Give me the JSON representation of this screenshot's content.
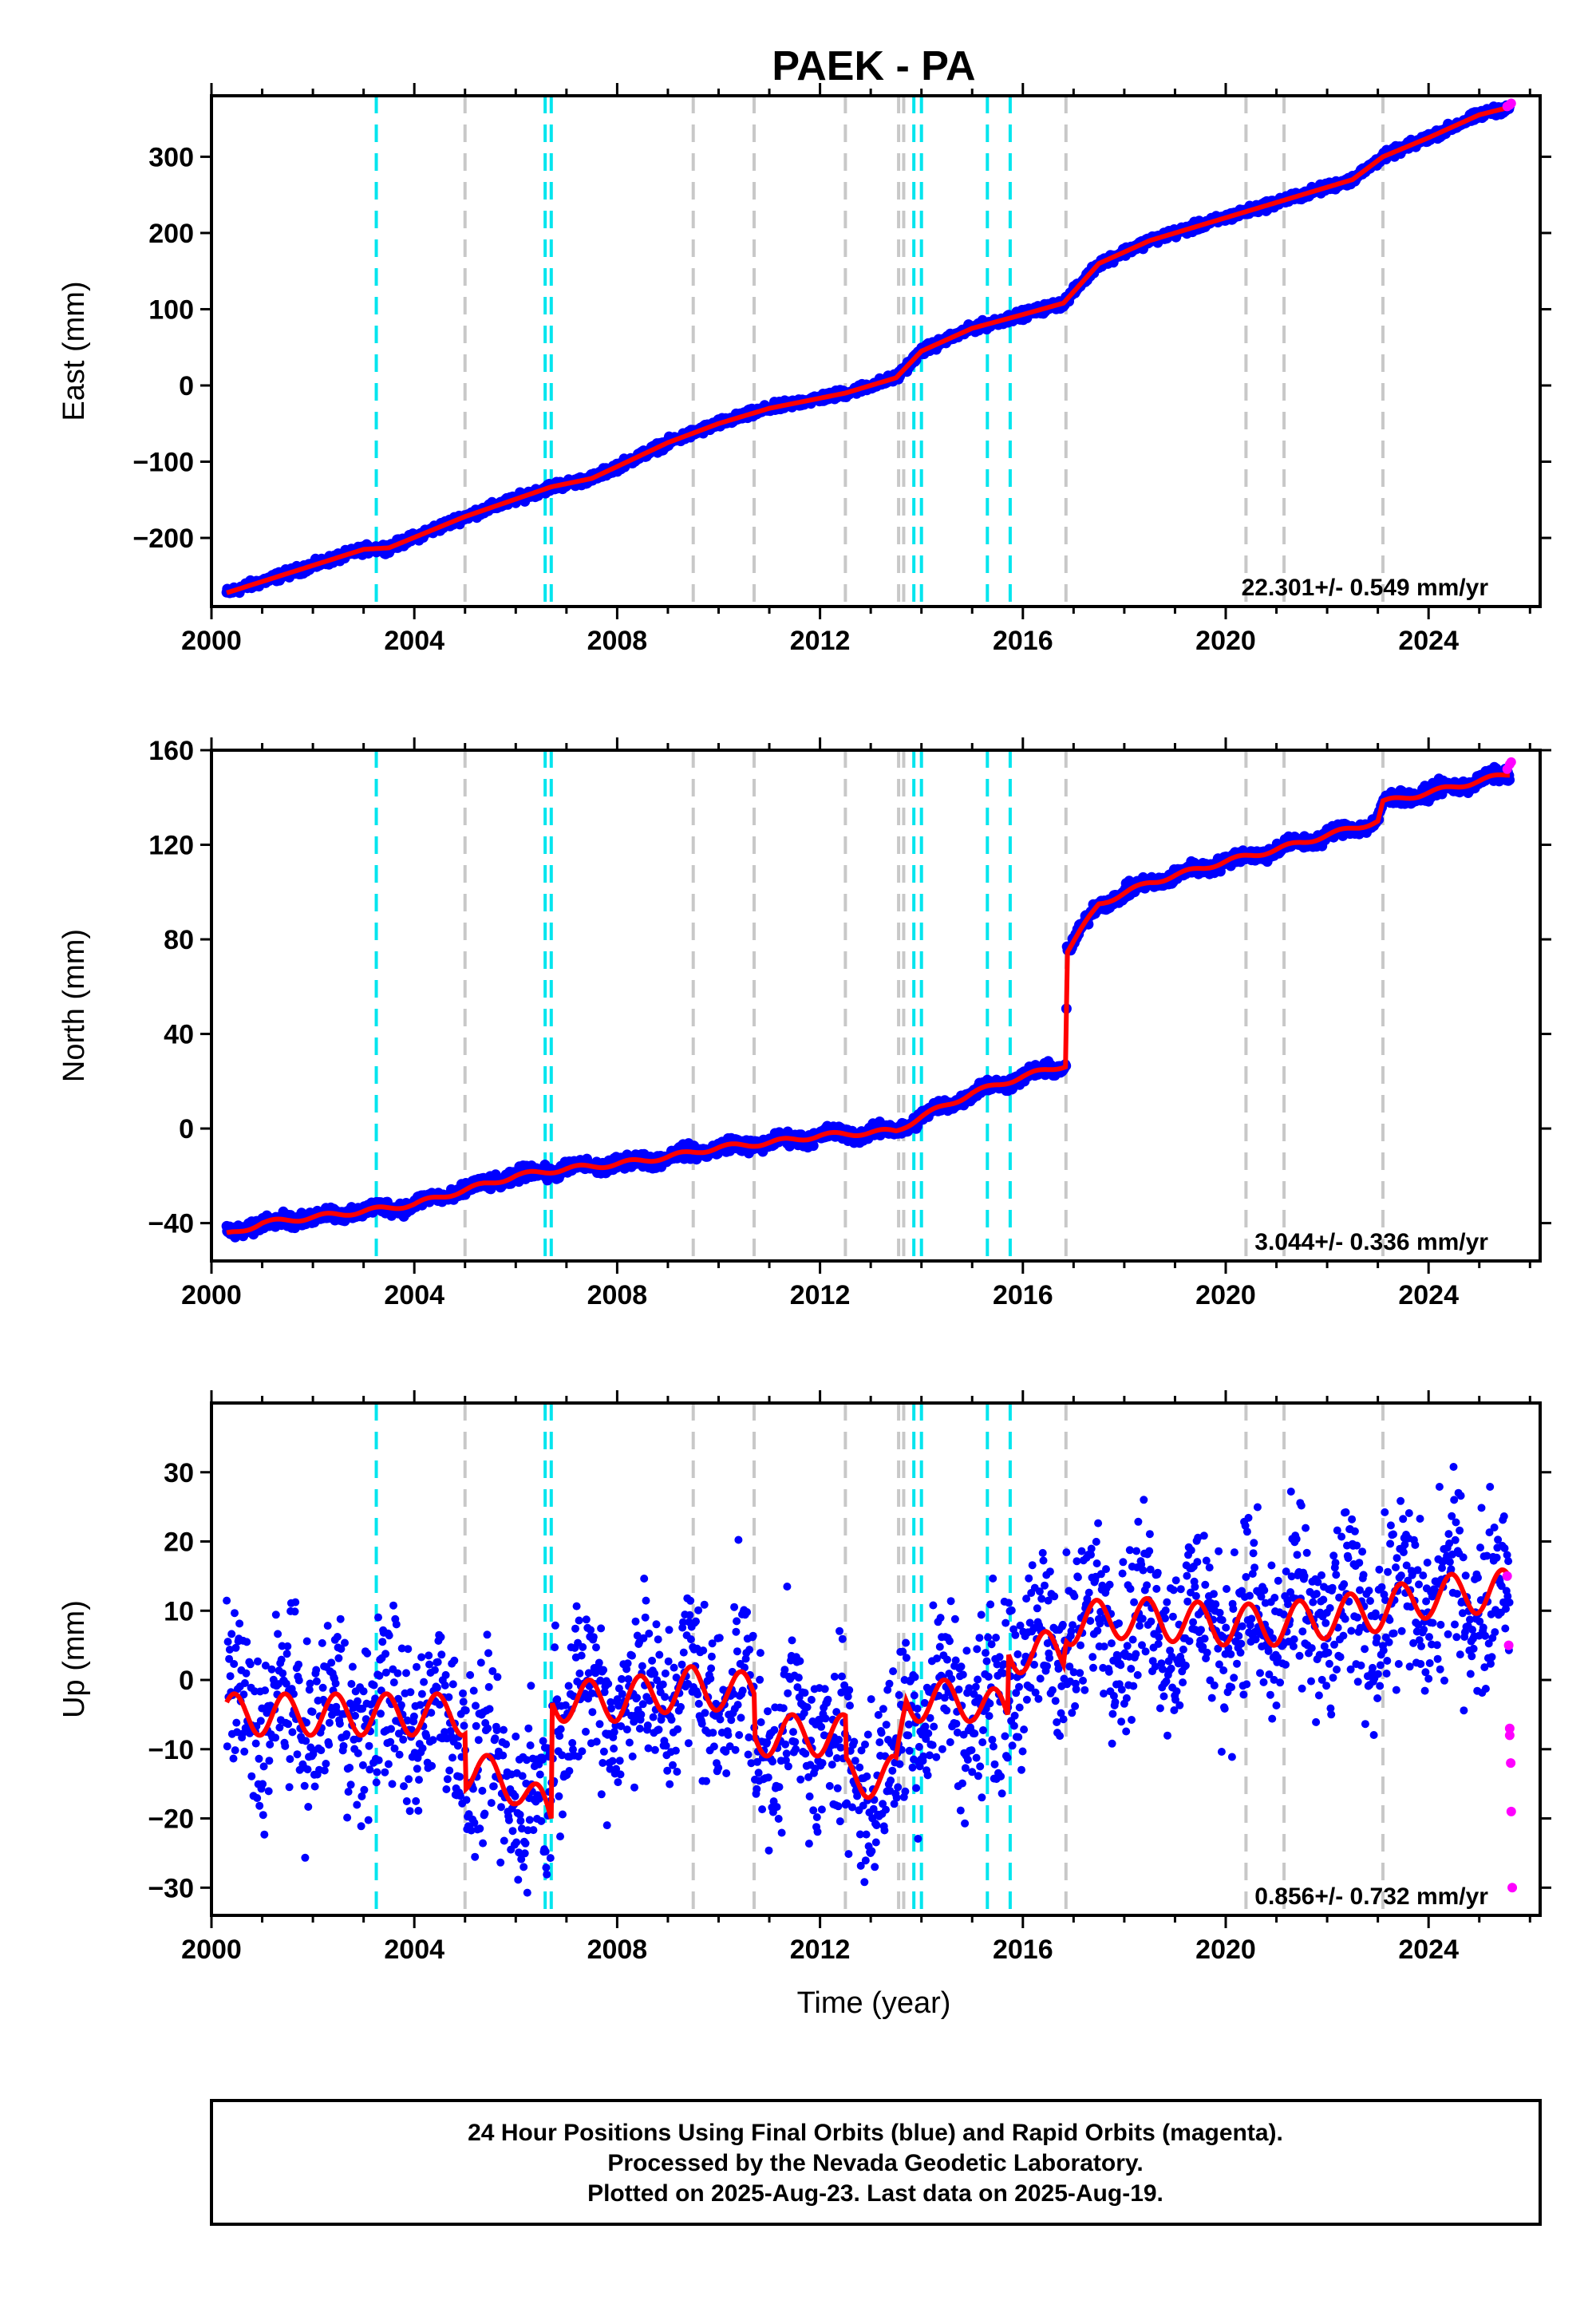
{
  "chart_data": {
    "type": "scatter",
    "title": "PAEK - PA",
    "xlabel": "Time (year)",
    "x_ticks": [
      2000,
      2004,
      2008,
      2012,
      2016,
      2020,
      2024
    ],
    "xlim": [
      2000,
      2026.2
    ],
    "cyan_lines": [
      2003.25,
      2006.58,
      2006.7,
      2013.85,
      2014.0,
      2015.3,
      2015.75
    ],
    "gray_lines": [
      2005.0,
      2009.5,
      2010.7,
      2012.5,
      2013.55,
      2013.65,
      2016.85,
      2020.4,
      2021.15,
      2023.1
    ],
    "panels": [
      {
        "id": "east",
        "ylabel": "East (mm)",
        "ylim": [
          -290,
          380
        ],
        "y_ticks": [
          -200,
          -100,
          0,
          100,
          200,
          300
        ],
        "rate_text": "22.301+/- 0.549 mm/yr",
        "noise": 4,
        "series_final": {
          "name": "Final Orbits",
          "color": "#0000ff",
          "trend": [
            [
              2000.3,
              -272
            ],
            [
              2003.0,
              -215
            ],
            [
              2003.5,
              -213
            ],
            [
              2005.0,
              -172
            ],
            [
              2006.7,
              -133
            ],
            [
              2007.5,
              -122
            ],
            [
              2009.0,
              -75
            ],
            [
              2010.0,
              -50
            ],
            [
              2011.0,
              -30
            ],
            [
              2012.5,
              -10
            ],
            [
              2013.5,
              10
            ],
            [
              2014.0,
              45
            ],
            [
              2015.0,
              75
            ],
            [
              2016.0,
              93
            ],
            [
              2016.8,
              108
            ],
            [
              2017.5,
              160
            ],
            [
              2018.5,
              190
            ],
            [
              2020.0,
              220
            ],
            [
              2021.0,
              240
            ],
            [
              2022.5,
              270
            ],
            [
              2023.1,
              300
            ],
            [
              2024.0,
              325
            ],
            [
              2025.0,
              355
            ],
            [
              2025.6,
              365
            ]
          ]
        },
        "series_rapid": {
          "name": "Rapid Orbits",
          "color": "#ff00ff",
          "points": [
            [
              2025.55,
              366
            ],
            [
              2025.6,
              368
            ],
            [
              2025.63,
              370
            ]
          ]
        }
      },
      {
        "id": "north",
        "ylabel": "North (mm)",
        "ylim": [
          -56,
          160
        ],
        "y_ticks": [
          -40,
          0,
          40,
          80,
          120,
          160
        ],
        "rate_text": "3.044+/- 0.336 mm/yr",
        "noise": 2,
        "series_final": {
          "name": "Final Orbits",
          "color": "#0000ff",
          "trend": [
            [
              2000.3,
              -45
            ],
            [
              2001.0,
              -40
            ],
            [
              2003.0,
              -35
            ],
            [
              2004.0,
              -32
            ],
            [
              2005.0,
              -26
            ],
            [
              2006.0,
              -20
            ],
            [
              2007.0,
              -17
            ],
            [
              2008.0,
              -15
            ],
            [
              2009.0,
              -12
            ],
            [
              2010.0,
              -8
            ],
            [
              2011.0,
              -6
            ],
            [
              2012.0,
              -3
            ],
            [
              2013.5,
              -1
            ],
            [
              2014.0,
              5
            ],
            [
              2015.0,
              15
            ],
            [
              2016.0,
              22
            ],
            [
              2016.85,
              27
            ],
            [
              2016.87,
              75
            ],
            [
              2017.5,
              95
            ],
            [
              2018.5,
              104
            ],
            [
              2020.0,
              113
            ],
            [
              2021.0,
              118
            ],
            [
              2022.0,
              124
            ],
            [
              2023.0,
              130
            ],
            [
              2023.1,
              138
            ],
            [
              2024.0,
              142
            ],
            [
              2025.0,
              147
            ],
            [
              2025.6,
              150
            ]
          ]
        },
        "series_rapid": {
          "name": "Rapid Orbits",
          "color": "#ff00ff",
          "points": [
            [
              2025.55,
              152
            ],
            [
              2025.6,
              154
            ],
            [
              2025.63,
              155
            ]
          ]
        }
      },
      {
        "id": "up",
        "ylabel": "Up (mm)",
        "ylim": [
          -34,
          40
        ],
        "y_ticks": [
          -30,
          -20,
          -10,
          0,
          10,
          20,
          30
        ],
        "rate_text": "0.856+/- 0.732 mm/yr",
        "noise": 9,
        "series_final": {
          "name": "Final Orbits",
          "color": "#0000ff",
          "trend": [
            [
              2000.3,
              -5
            ],
            [
              2003.0,
              -5
            ],
            [
              2004.0,
              -5
            ],
            [
              2005.0,
              -5
            ],
            [
              2005.0,
              -13
            ],
            [
              2006.0,
              -15
            ],
            [
              2006.7,
              -20
            ],
            [
              2006.7,
              -3
            ],
            [
              2008.0,
              -3
            ],
            [
              2009.5,
              -1
            ],
            [
              2010.7,
              -2
            ],
            [
              2010.7,
              -8
            ],
            [
              2012.5,
              -8
            ],
            [
              2012.5,
              -14
            ],
            [
              2013.5,
              -14
            ],
            [
              2013.7,
              -3
            ],
            [
              2015.0,
              -3
            ],
            [
              2015.7,
              -5
            ],
            [
              2015.7,
              4
            ],
            [
              2016.8,
              4
            ],
            [
              2016.85,
              8
            ],
            [
              2018.0,
              9
            ],
            [
              2020.0,
              8
            ],
            [
              2021.0,
              8
            ],
            [
              2022.0,
              9
            ],
            [
              2023.0,
              10
            ],
            [
              2024.0,
              12
            ],
            [
              2025.6,
              13
            ]
          ]
        },
        "series_rapid": {
          "name": "Rapid Orbits",
          "color": "#ff00ff",
          "points": [
            [
              2025.55,
              15
            ],
            [
              2025.58,
              5
            ],
            [
              2025.6,
              -7
            ],
            [
              2025.6,
              -8
            ],
            [
              2025.62,
              -12
            ],
            [
              2025.63,
              -19
            ],
            [
              2025.65,
              -30
            ]
          ]
        }
      }
    ],
    "model_color": "#ff0000"
  },
  "footer": {
    "line1": "24 Hour Positions Using Final Orbits (blue) and Rapid Orbits (magenta).",
    "line2": "Processed by the Nevada Geodetic Laboratory.",
    "line3": "Plotted on 2025-Aug-23. Last data on 2025-Aug-19."
  }
}
